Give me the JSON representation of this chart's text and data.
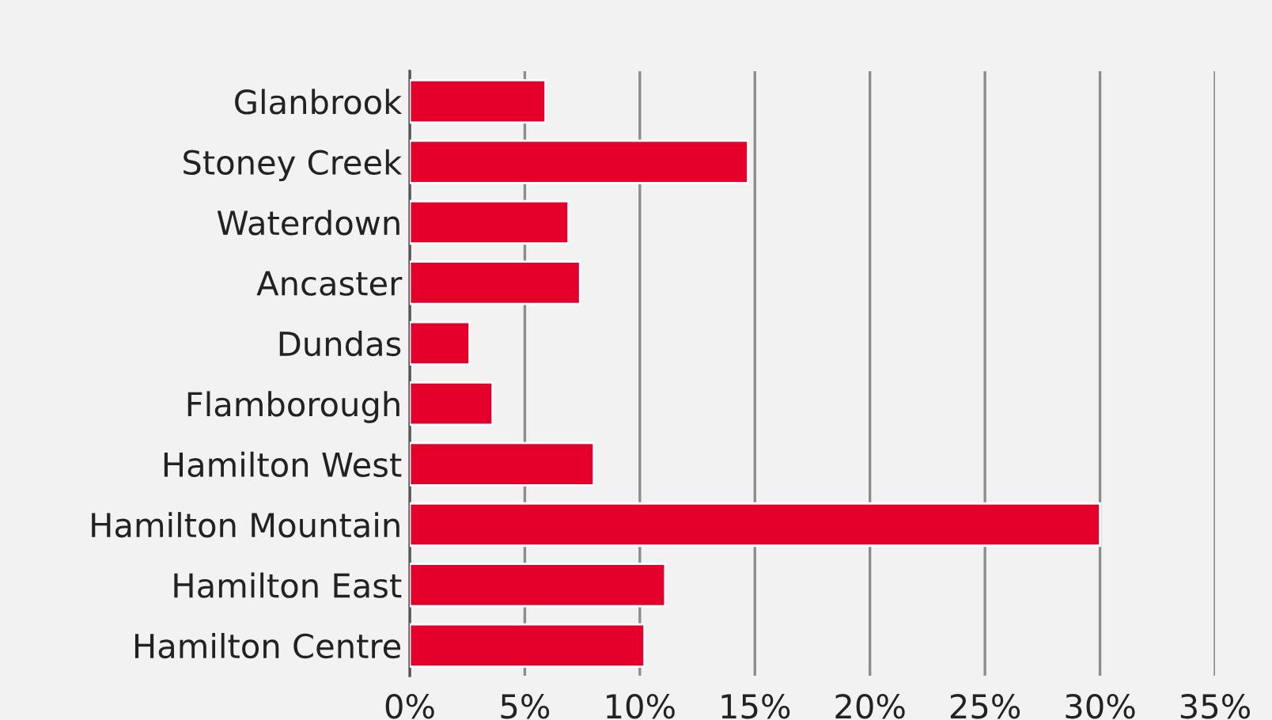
{
  "chart_data": {
    "type": "bar",
    "orientation": "horizontal",
    "categories": [
      "Glanbrook",
      "Stoney Creek",
      "Waterdown",
      "Ancaster",
      "Dundas",
      "Flamborough",
      "Hamilton West",
      "Hamilton Mountain",
      "Hamilton East",
      "Hamilton Centre"
    ],
    "values": [
      5.9,
      14.7,
      6.9,
      7.4,
      2.6,
      3.6,
      8.0,
      30.0,
      11.1,
      10.2
    ],
    "color": "#e4002b",
    "xlim": [
      0,
      35
    ],
    "xticks": [
      {
        "value": 0,
        "label": "0%"
      },
      {
        "value": 5,
        "label": "5%"
      },
      {
        "value": 10,
        "label": "10%"
      },
      {
        "value": 15,
        "label": "15%"
      },
      {
        "value": 20,
        "label": "20%"
      },
      {
        "value": 25,
        "label": "25%"
      },
      {
        "value": 30,
        "label": "30%"
      },
      {
        "value": 35,
        "label": "35%"
      }
    ],
    "grid": "x",
    "legend": false
  }
}
